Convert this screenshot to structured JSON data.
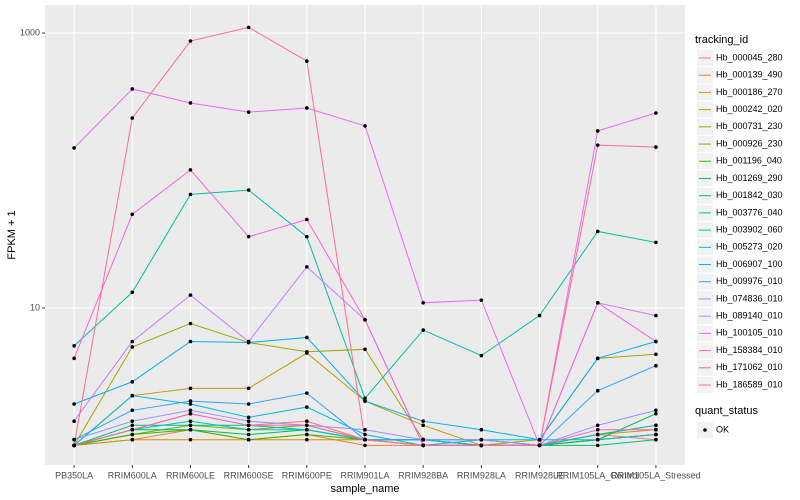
{
  "chart_data": {
    "type": "line",
    "x_label": "sample_name",
    "y_label": "FPKM + 1",
    "log_scale": true,
    "grid": true,
    "legend_position": "right",
    "legend_title": "tracking_id",
    "point_legend_title": "quant_status",
    "point_legend_label": "OK",
    "point_color": "#000000",
    "categories": [
      "PB350LA",
      "RRIM600LA",
      "RRIM600LE",
      "RRIM600SE",
      "RRIM600PE",
      "RRIM901LA",
      "RRIM928BA",
      "RRIM928LA",
      "RRIM928LE",
      "RRIM105LA_Control",
      "RRIM105LA_Stressed"
    ],
    "ylim": [
      0.72,
      1600
    ],
    "yticks": [
      10,
      1000
    ],
    "series": [
      {
        "name": "Hb_000045_280",
        "color": "#F8766D",
        "values": [
          1.0,
          1.3,
          1.7,
          1.4,
          1.5,
          1.1,
          1.0,
          1.0,
          1.0,
          1.2,
          1.1
        ]
      },
      {
        "name": "Hb_000139_490",
        "color": "#EA8331",
        "values": [
          1.0,
          1.1,
          1.3,
          1.1,
          1.2,
          1.0,
          1.0,
          1.0,
          1.0,
          1.1,
          1.2
        ]
      },
      {
        "name": "Hb_000186_270",
        "color": "#D89000",
        "values": [
          1.0,
          1.1,
          1.1,
          1.1,
          1.1,
          1.1,
          1.0,
          1.0,
          1.0,
          1.1,
          1.2
        ]
      },
      {
        "name": "Hb_000242_020",
        "color": "#C09B00",
        "values": [
          1.0,
          2.3,
          2.6,
          2.6,
          4.7,
          2.1,
          1.4,
          1.0,
          1.0,
          1.2,
          1.3
        ]
      },
      {
        "name": "Hb_000731_230",
        "color": "#A3A500",
        "values": [
          1.0,
          5.2,
          7.7,
          5.6,
          4.8,
          5.0,
          1.1,
          1.0,
          1.1,
          4.3,
          4.6
        ]
      },
      {
        "name": "Hb_000926_230",
        "color": "#7CAE00",
        "values": [
          1.0,
          1.2,
          1.4,
          1.3,
          1.4,
          1.1,
          1.0,
          1.0,
          1.0,
          1.1,
          1.2
        ]
      },
      {
        "name": "Hb_001196_040",
        "color": "#39B600",
        "values": [
          1.0,
          1.2,
          1.3,
          1.1,
          1.2,
          1.1,
          1.1,
          1.0,
          1.0,
          1.2,
          1.4
        ]
      },
      {
        "name": "Hb_001269_290",
        "color": "#00BB4E",
        "values": [
          1.0,
          1.3,
          1.3,
          1.2,
          1.3,
          1.1,
          1.1,
          1.1,
          1.0,
          1.1,
          1.7
        ]
      },
      {
        "name": "Hb_001842_030",
        "color": "#00BF7D",
        "values": [
          1.0,
          1.4,
          1.4,
          1.4,
          1.3,
          1.1,
          1.1,
          1.0,
          1.0,
          1.0,
          1.1
        ]
      },
      {
        "name": "Hb_003776_040",
        "color": "#00C1A3",
        "values": [
          5.3,
          13,
          67,
          72,
          33,
          2.2,
          6.9,
          4.5,
          8.8,
          36,
          30
        ]
      },
      {
        "name": "Hb_003902_060",
        "color": "#00BFC4",
        "values": [
          1.0,
          1.3,
          1.5,
          1.3,
          1.3,
          1.1,
          1.1,
          1.0,
          1.0,
          1.2,
          1.4
        ]
      },
      {
        "name": "Hb_005273_020",
        "color": "#00BAE0",
        "values": [
          1.0,
          2.3,
          2.0,
          1.6,
          1.9,
          1.2,
          1.0,
          1.1,
          1.1,
          1.1,
          1.2
        ]
      },
      {
        "name": "Hb_006907_100",
        "color": "#00B0F6",
        "values": [
          2.0,
          2.9,
          5.7,
          5.6,
          6.1,
          2.1,
          1.5,
          1.3,
          1.1,
          4.3,
          5.7
        ]
      },
      {
        "name": "Hb_009976_010",
        "color": "#35A2FF",
        "values": [
          1.1,
          1.8,
          2.1,
          2.0,
          2.4,
          1.1,
          1.1,
          1.1,
          1.0,
          2.5,
          3.8
        ]
      },
      {
        "name": "Hb_074836_010",
        "color": "#9590FF",
        "values": [
          1.1,
          1.5,
          1.8,
          1.5,
          1.4,
          1.3,
          1.1,
          1.1,
          1.0,
          1.4,
          1.8
        ]
      },
      {
        "name": "Hb_089140_010",
        "color": "#C77CFF",
        "values": [
          1.5,
          5.7,
          12.4,
          5.7,
          19.9,
          8.2,
          1.0,
          1.0,
          1.0,
          10.9,
          8.8
        ]
      },
      {
        "name": "Hb_100105_010",
        "color": "#E76BF3",
        "values": [
          146,
          392,
          310,
          266,
          285,
          211,
          10.9,
          11.4,
          1.0,
          194,
          262
        ]
      },
      {
        "name": "Hb_158384_010",
        "color": "#FA62DB",
        "values": [
          4.3,
          48,
          101,
          33,
          44,
          8.2,
          1.0,
          1.0,
          1.0,
          10.9,
          5.7
        ]
      },
      {
        "name": "Hb_171062_010",
        "color": "#FF62BC",
        "values": [
          1.0,
          1.3,
          1.7,
          1.4,
          1.4,
          1.1,
          1.0,
          1.0,
          1.0,
          1.3,
          1.3
        ]
      },
      {
        "name": "Hb_186589_010",
        "color": "#FF6C91",
        "values": [
          1.0,
          241,
          875,
          1100,
          625,
          1.1,
          1.0,
          1.0,
          1.0,
          153,
          148
        ]
      }
    ]
  }
}
